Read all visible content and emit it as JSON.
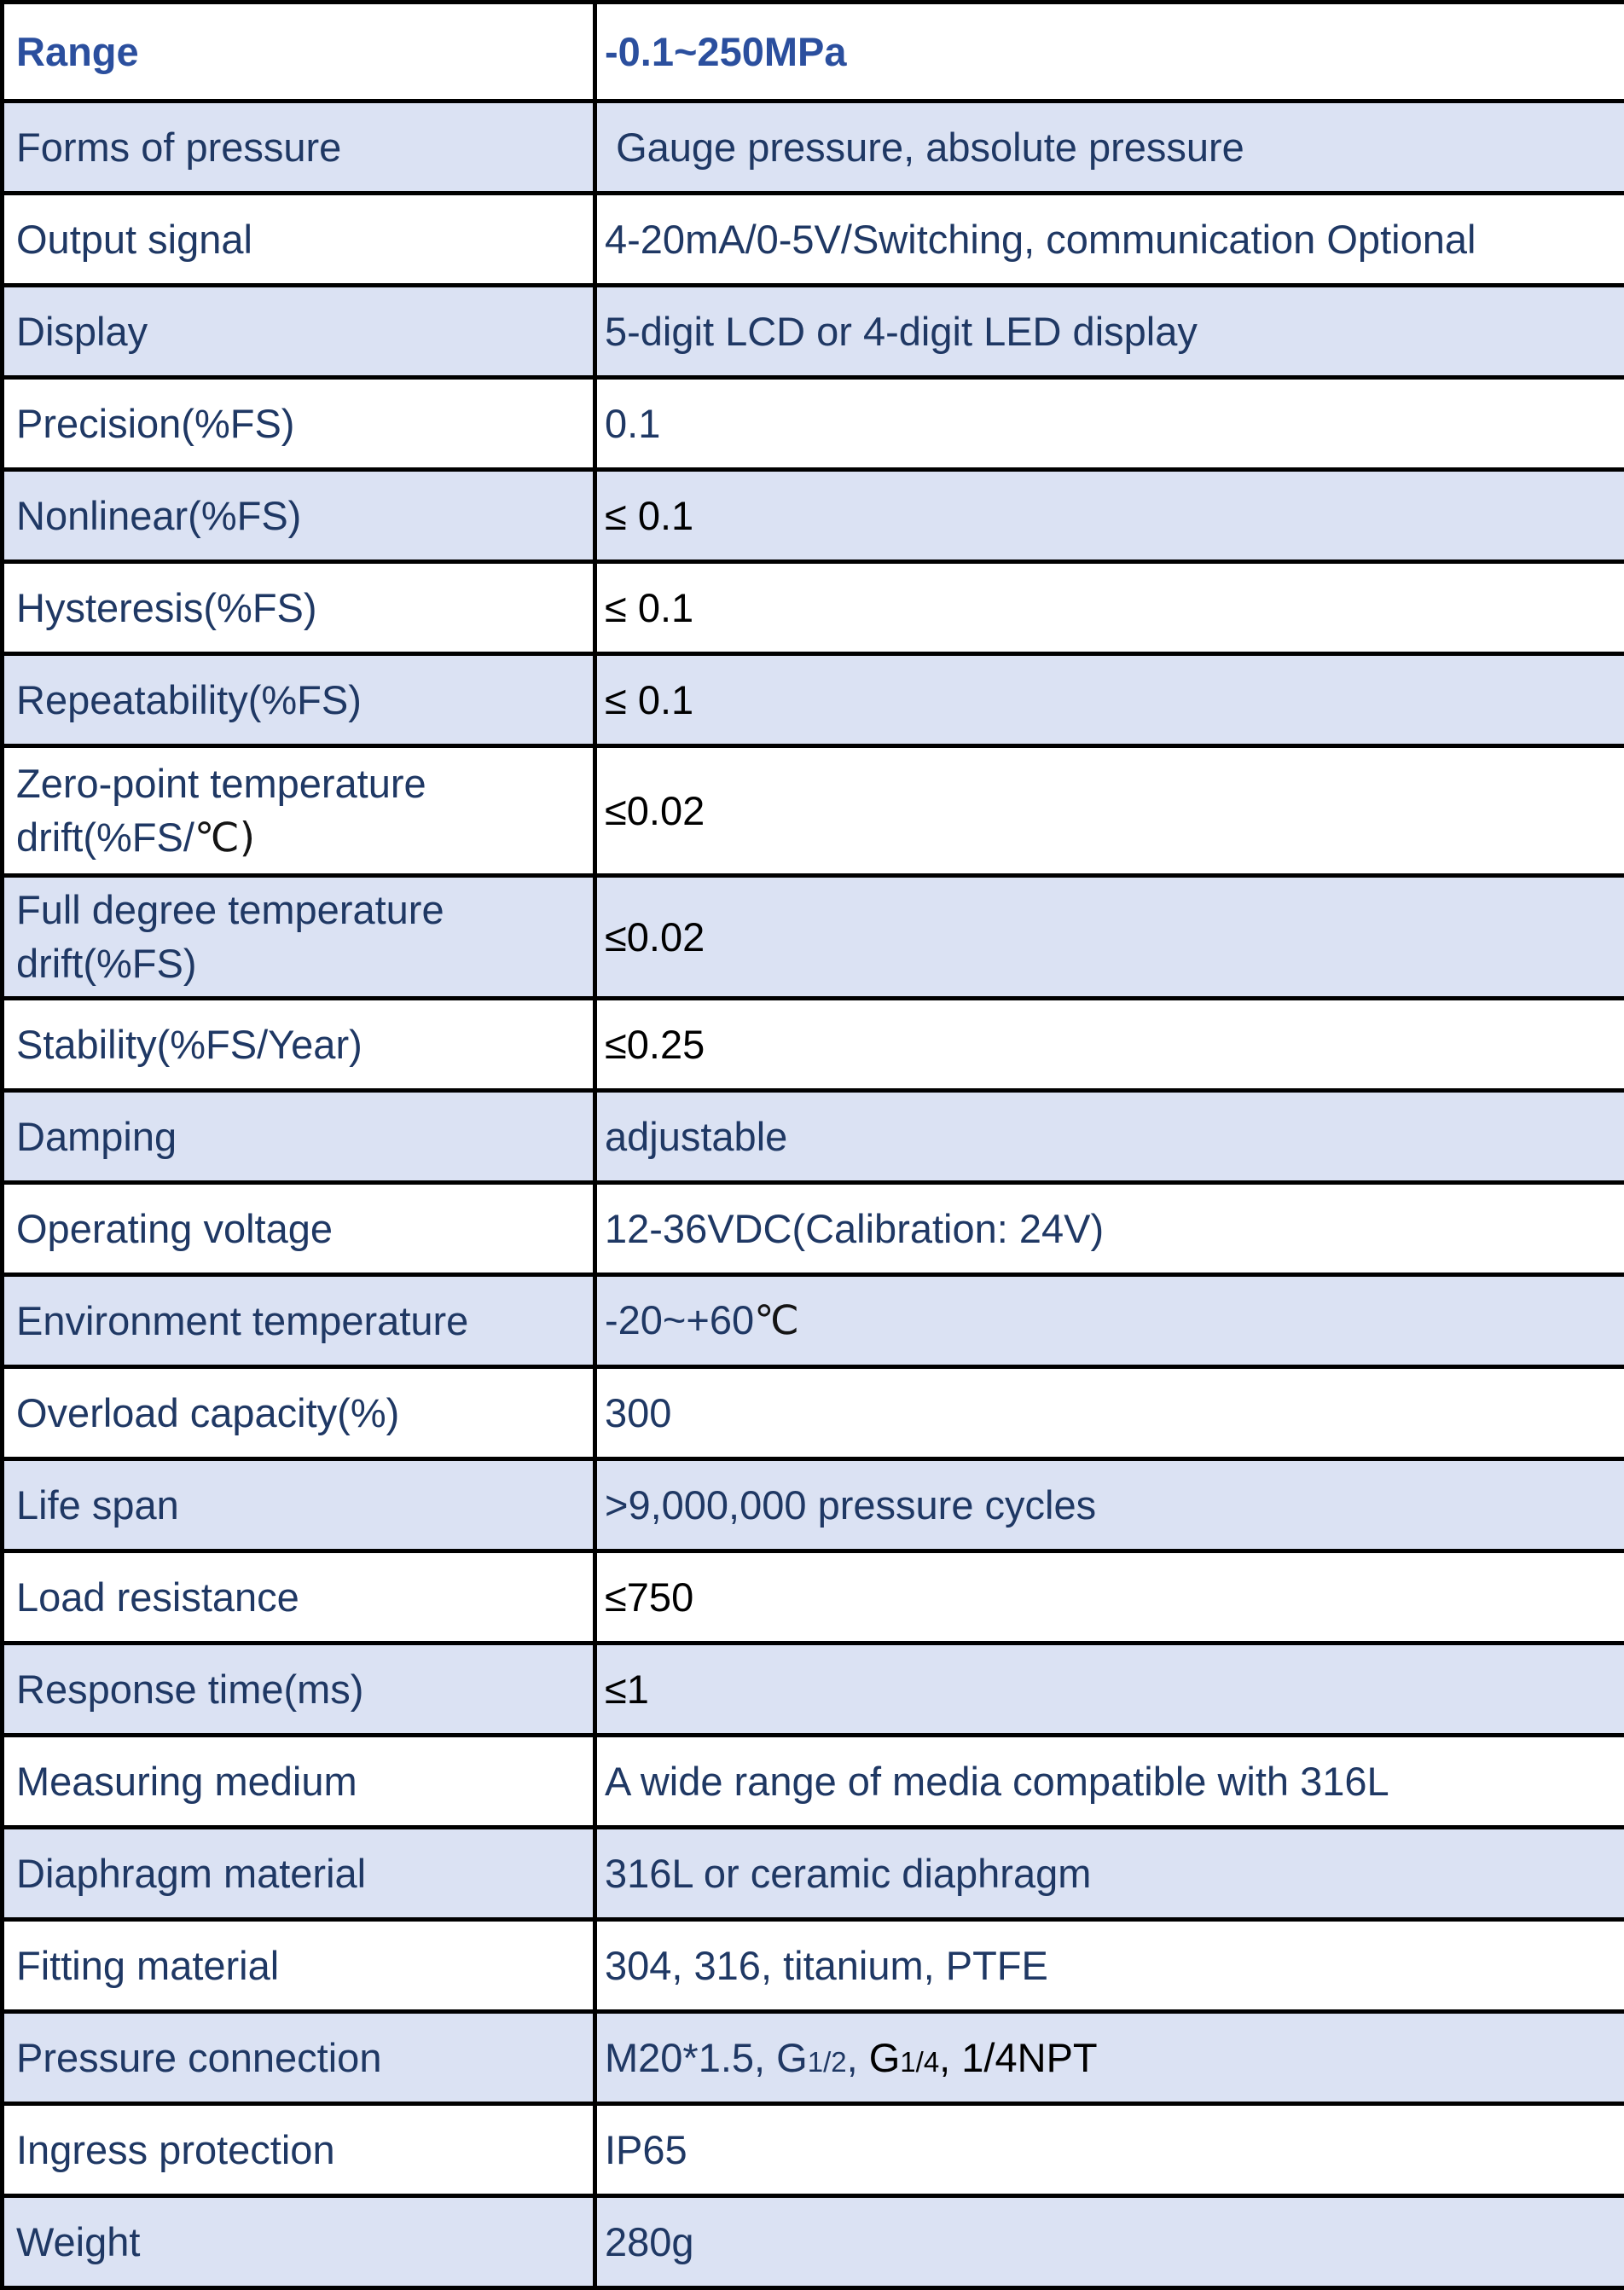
{
  "colors": {
    "label_navy": "#1f3864",
    "header_blue": "#2b4f9e",
    "value_black": "#000000",
    "row_shade": "#dbe2f3",
    "border_black": "#000000"
  },
  "table": {
    "rows": [
      {
        "shaded": false,
        "size": "first",
        "label_segments": [
          {
            "text": "Range",
            "style": "bold"
          }
        ],
        "value_segments": [
          {
            "text": "-0.1~250MPa",
            "style": "bold"
          }
        ]
      },
      {
        "shaded": true,
        "label_segments": [
          {
            "text": "Forms of pressure",
            "style": "navy"
          }
        ],
        "value_segments": [
          {
            "text": " Gauge pressure, absolute pressure",
            "style": "navy"
          }
        ]
      },
      {
        "shaded": false,
        "label_segments": [
          {
            "text": "Output signal",
            "style": "navy"
          }
        ],
        "value_segments": [
          {
            "text": "4-20mA/0-5V/Switching, communication Optional",
            "style": "navy"
          }
        ]
      },
      {
        "shaded": true,
        "label_segments": [
          {
            "text": "Display",
            "style": "navy"
          }
        ],
        "value_segments": [
          {
            "text": "5-digit LCD or 4-digit LED display",
            "style": "navy"
          }
        ]
      },
      {
        "shaded": false,
        "label_segments": [
          {
            "text": "Precision(%FS)",
            "style": "navy"
          }
        ],
        "value_segments": [
          {
            "text": "0.1",
            "style": "navy"
          }
        ]
      },
      {
        "shaded": true,
        "label_segments": [
          {
            "text": "Nonlinear(%FS)",
            "style": "navy"
          }
        ],
        "value_segments": [
          {
            "text": "≤ 0.1",
            "style": "black"
          }
        ]
      },
      {
        "shaded": false,
        "label_segments": [
          {
            "text": "Hysteresis(%FS)",
            "style": "navy"
          }
        ],
        "value_segments": [
          {
            "text": "≤ 0.1",
            "style": "black"
          }
        ]
      },
      {
        "shaded": true,
        "label_segments": [
          {
            "text": "Repeatability(%FS)",
            "style": "navy"
          }
        ],
        "value_segments": [
          {
            "text": "≤ 0.1",
            "style": "black"
          }
        ]
      },
      {
        "shaded": false,
        "size": "tall1",
        "label_segments": [
          {
            "text": "Zero-point temperature drift(%FS/",
            "style": "navy"
          },
          {
            "text": "℃)",
            "style": "cjk"
          }
        ],
        "value_segments": [
          {
            "text": "≤0.02",
            "style": "black"
          }
        ]
      },
      {
        "shaded": true,
        "size": "tall2",
        "label_segments": [
          {
            "text": "Full degree temperature drift(%FS)",
            "style": "navy"
          }
        ],
        "value_segments": [
          {
            "text": "≤0.02",
            "style": "black"
          }
        ]
      },
      {
        "shaded": false,
        "label_segments": [
          {
            "text": "Stability(%FS/Year)",
            "style": "navy"
          }
        ],
        "value_segments": [
          {
            "text": "≤0.25",
            "style": "black"
          }
        ]
      },
      {
        "shaded": true,
        "label_segments": [
          {
            "text": "Damping",
            "style": "navy"
          }
        ],
        "value_segments": [
          {
            "text": "adjustable",
            "style": "navy"
          }
        ]
      },
      {
        "shaded": false,
        "label_segments": [
          {
            "text": "Operating voltage",
            "style": "navy"
          }
        ],
        "value_segments": [
          {
            "text": "12-36VDC(Calibration: 24V)",
            "style": "navy"
          }
        ]
      },
      {
        "shaded": true,
        "label_segments": [
          {
            "text": "Environment temperature",
            "style": "navy"
          }
        ],
        "value_segments": [
          {
            "text": "-20~+60",
            "style": "navy"
          },
          {
            "text": "℃",
            "style": "cjk"
          }
        ]
      },
      {
        "shaded": false,
        "label_segments": [
          {
            "text": "Overload capacity(%)",
            "style": "navy"
          }
        ],
        "value_segments": [
          {
            "text": "300",
            "style": "navy"
          }
        ]
      },
      {
        "shaded": true,
        "label_segments": [
          {
            "text": "Life span",
            "style": "navy"
          }
        ],
        "value_segments": [
          {
            "text": ">9,000,000 pressure cycles",
            "style": "navy"
          }
        ]
      },
      {
        "shaded": false,
        "label_segments": [
          {
            "text": "Load resistance",
            "style": "navy"
          }
        ],
        "value_segments": [
          {
            "text": "≤750",
            "style": "black"
          }
        ]
      },
      {
        "shaded": true,
        "label_segments": [
          {
            "text": "Response time(ms)",
            "style": "navy"
          }
        ],
        "value_segments": [
          {
            "text": "≤1",
            "style": "black"
          }
        ]
      },
      {
        "shaded": false,
        "label_segments": [
          {
            "text": "Measuring medium",
            "style": "navy"
          }
        ],
        "value_segments": [
          {
            "text": "A wide range of media compatible with 316L",
            "style": "navy"
          }
        ]
      },
      {
        "shaded": true,
        "label_segments": [
          {
            "text": "Diaphragm material",
            "style": "navy"
          }
        ],
        "value_segments": [
          {
            "text": "316L or ceramic diaphragm",
            "style": "navy"
          }
        ]
      },
      {
        "shaded": false,
        "label_segments": [
          {
            "text": "Fitting material",
            "style": "navy"
          }
        ],
        "value_segments": [
          {
            "text": "304, 316, titanium, PTFE",
            "style": "navy"
          }
        ]
      },
      {
        "shaded": true,
        "label_segments": [
          {
            "text": "Pressure connection",
            "style": "navy"
          }
        ],
        "value_segments": [
          {
            "text": "M20*1.5, G",
            "style": "navy"
          },
          {
            "text": "1/2",
            "style": "small-navy"
          },
          {
            "text": ", ",
            "style": "navy"
          },
          {
            "text": "G",
            "style": "black"
          },
          {
            "text": "1/4",
            "style": "small-black"
          },
          {
            "text": ", 1/4NPT",
            "style": "black"
          }
        ]
      },
      {
        "shaded": false,
        "label_segments": [
          {
            "text": "Ingress protection",
            "style": "navy"
          }
        ],
        "value_segments": [
          {
            "text": "IP65",
            "style": "navy"
          }
        ]
      },
      {
        "shaded": true,
        "label_segments": [
          {
            "text": "Weight",
            "style": "navy"
          }
        ],
        "value_segments": [
          {
            "text": "280g",
            "style": "navy"
          }
        ]
      }
    ]
  }
}
